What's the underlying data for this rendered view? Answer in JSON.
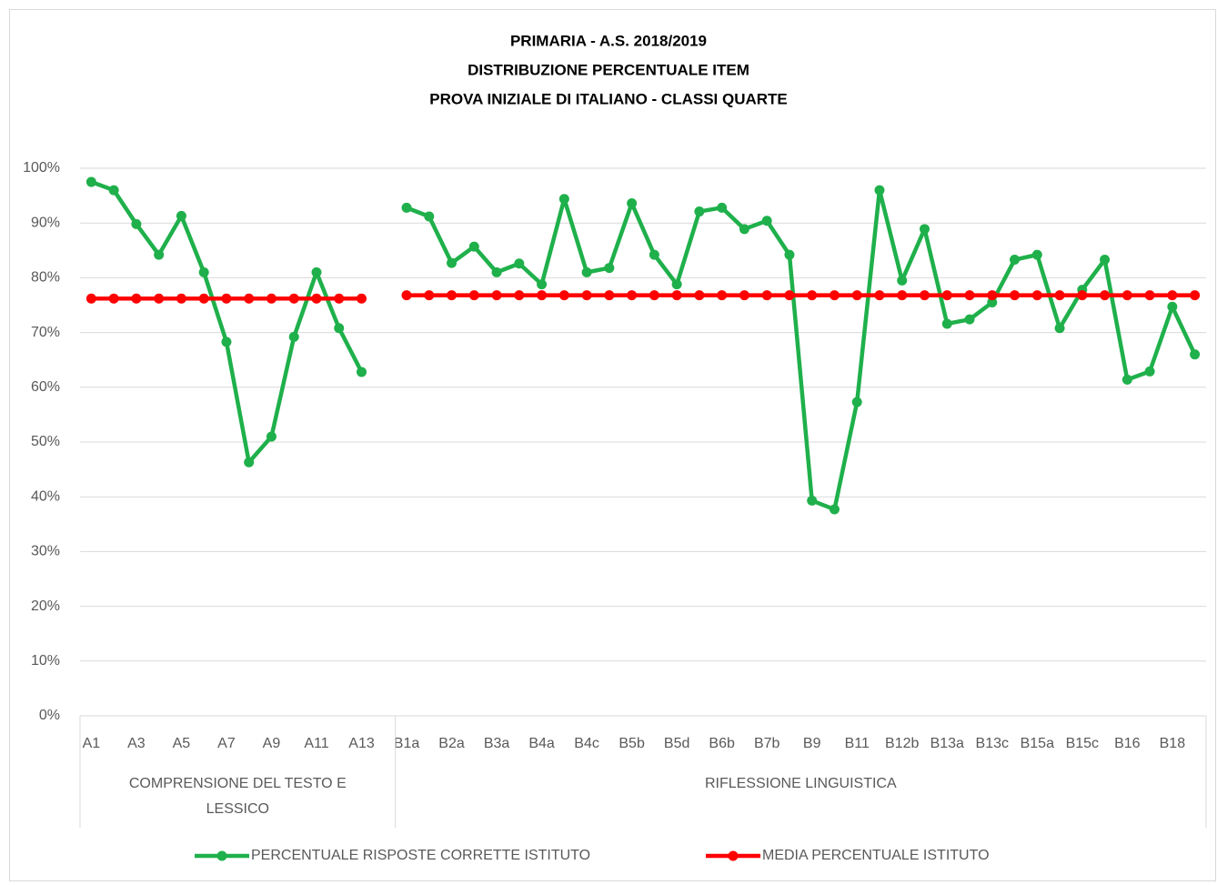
{
  "chart_data": {
    "type": "line",
    "title": [
      "PRIMARIA - A.S. 2018/2019",
      "DISTRIBUZIONE PERCENTUALE ITEM",
      "PROVA INIZIALE DI ITALIANO - CLASSI QUARTE"
    ],
    "categories": [
      "A1",
      null,
      "A3",
      null,
      "A5",
      null,
      "A7",
      null,
      "A9",
      null,
      "A11",
      null,
      "A13",
      null,
      "B1a",
      null,
      "B2a",
      null,
      "B3a",
      null,
      "B4a",
      null,
      "B4c",
      null,
      "B5b",
      null,
      "B5d",
      null,
      "B6b",
      null,
      "B7b",
      null,
      "B9",
      null,
      "B11",
      null,
      "B12b",
      null,
      "B13a",
      null,
      "B13c",
      null,
      "B15a",
      null,
      "B15c",
      null,
      "B16",
      null,
      "B18",
      null
    ],
    "groups": [
      {
        "label": "COMPRENSIONE DEL TESTO E LESSICO",
        "count": 14
      },
      {
        "label": "RIFLESSIONE LINGUISTICA",
        "count": 36
      }
    ],
    "series": [
      {
        "name": "PERCENTUALE RISPOSTE CORRETTE ISTITUTO",
        "color": "#1fb04b",
        "values": [
          97.5,
          96,
          89.8,
          84.2,
          91.3,
          81,
          68.3,
          46.3,
          51,
          69.2,
          81,
          70.8,
          62.8,
          null,
          92.8,
          91.2,
          82.7,
          85.7,
          81,
          82.6,
          78.8,
          94.4,
          81,
          81.8,
          93.6,
          84.2,
          78.8,
          92.1,
          92.8,
          88.9,
          90.4,
          84.2,
          39.3,
          37.7,
          57.3,
          96,
          79.5,
          88.9,
          71.6,
          72.4,
          75.5,
          83.3,
          84.2,
          70.8,
          77.8,
          83.3,
          61.4,
          62.9,
          74.7,
          66
        ]
      },
      {
        "name": "MEDIA PERCENTUALE  ISTITUTO",
        "color": "#ff0000",
        "values": [
          76.2,
          76.2,
          76.2,
          76.2,
          76.2,
          76.2,
          76.2,
          76.2,
          76.2,
          76.2,
          76.2,
          76.2,
          76.2,
          null,
          76.8,
          76.8,
          76.8,
          76.8,
          76.8,
          76.8,
          76.8,
          76.8,
          76.8,
          76.8,
          76.8,
          76.8,
          76.8,
          76.8,
          76.8,
          76.8,
          76.8,
          76.8,
          76.8,
          76.8,
          76.8,
          76.8,
          76.8,
          76.8,
          76.8,
          76.8,
          76.8,
          76.8,
          76.8,
          76.8,
          76.8,
          76.8,
          76.8,
          76.8,
          76.8,
          76.8
        ]
      }
    ],
    "ylim": [
      0,
      100
    ],
    "yticks": [
      {
        "value": 0,
        "label": "0%"
      },
      {
        "value": 10,
        "label": "10%"
      },
      {
        "value": 20,
        "label": "20%"
      },
      {
        "value": 30,
        "label": "30%"
      },
      {
        "value": 40,
        "label": "40%"
      },
      {
        "value": 50,
        "label": "50%"
      },
      {
        "value": 60,
        "label": "60%"
      },
      {
        "value": 70,
        "label": "70%"
      },
      {
        "value": 80,
        "label": "80%"
      },
      {
        "value": 90,
        "label": "90%"
      },
      {
        "value": 100,
        "label": "100%"
      }
    ],
    "grid": true,
    "legend": "bottom"
  }
}
